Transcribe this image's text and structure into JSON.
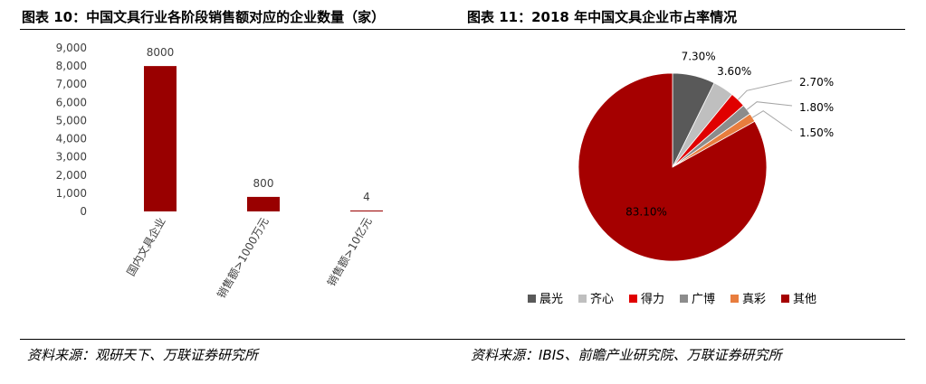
{
  "left_panel": {
    "title": "图表 10：中国文具行业各阶段销售额对应的企业数量（家）",
    "source": "资料来源：观研天下、万联证券研究所"
  },
  "right_panel": {
    "title": "图表 11：2018 年中国文具企业市占率情况",
    "source": "资料来源：IBIS、前瞻产业研究院、万联证券研究所"
  },
  "chart_data": [
    {
      "type": "bar",
      "categories": [
        "国内文具企业",
        "销售额>1000万元",
        "销售额>10亿元"
      ],
      "values": [
        8000,
        800,
        4
      ],
      "value_labels": [
        "8000",
        "800",
        "4"
      ],
      "ylim": [
        0,
        9000
      ],
      "yticks": [
        "0",
        "1,000",
        "2,000",
        "3,000",
        "4,000",
        "5,000",
        "6,000",
        "7,000",
        "8,000",
        "9,000"
      ],
      "grid": false,
      "bar_color": "#990000"
    },
    {
      "type": "pie",
      "labels": [
        "晨光",
        "齐心",
        "得力",
        "广博",
        "真彩",
        "其他"
      ],
      "values": [
        7.3,
        3.6,
        2.7,
        1.8,
        1.5,
        83.1
      ],
      "value_labels": [
        "7.30%",
        "3.60%",
        "2.70%",
        "1.80%",
        "1.50%",
        "83.10%"
      ],
      "colors": [
        "#595959",
        "#bfbfbf",
        "#e00000",
        "#8c8c8c",
        "#e87d3e",
        "#a50000"
      ],
      "legend_position": "bottom"
    }
  ]
}
